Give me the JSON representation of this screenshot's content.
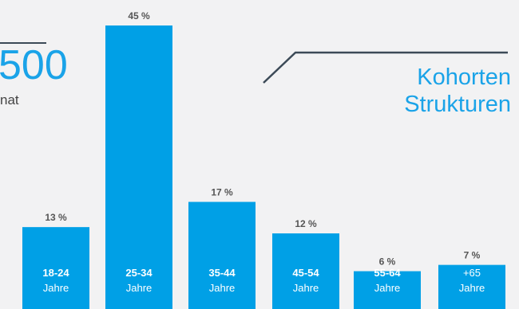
{
  "headline": {
    "value": "500",
    "subtitle": "nat"
  },
  "cohort_title": {
    "line1": "Kohorten",
    "line2": "Strukturen"
  },
  "colors": {
    "bar": "#00a0e6",
    "accent_text": "#1aa3e8",
    "value_text": "#555555",
    "line": "#3c4a57"
  },
  "chart_data": {
    "type": "bar",
    "categories": [
      "18-24",
      "25-34",
      "35-44",
      "45-54",
      "55-64",
      "+65"
    ],
    "category_sublabel": "Jahre",
    "values": [
      13,
      45,
      17,
      12,
      6,
      7
    ],
    "value_labels": [
      "13 %",
      "45 %",
      "17 %",
      "12 %",
      "6 %",
      "7 %"
    ],
    "title": "",
    "xlabel": "",
    "ylabel": "",
    "ylim": [
      0,
      45
    ],
    "grid": false
  }
}
